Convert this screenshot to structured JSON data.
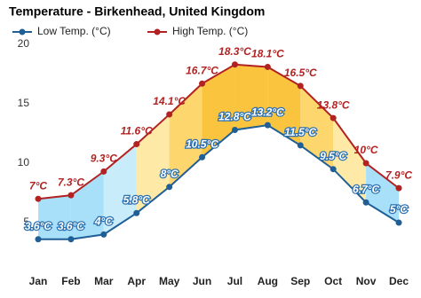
{
  "chart_data": {
    "type": "line",
    "title": "Temperature - Birkenhead, United Kingdom",
    "categories": [
      "Jan",
      "Feb",
      "Mar",
      "Apr",
      "May",
      "Jun",
      "Jul",
      "Aug",
      "Sep",
      "Oct",
      "Nov",
      "Dec"
    ],
    "series": [
      {
        "name": "Low Temp. (°C)",
        "color": "#1f5f96",
        "values": [
          3.6,
          3.6,
          4,
          5.8,
          8,
          10.5,
          12.8,
          13.2,
          11.5,
          9.5,
          6.7,
          5
        ],
        "value_labels": [
          "3.6°C",
          "3.6°C",
          "4°C",
          "5.8°C",
          "8°C",
          "10.5°C",
          "12.8°C",
          "13.2°C",
          "11.5°C",
          "9.5°C",
          "6.7°C",
          "5°C"
        ]
      },
      {
        "name": "High Temp. (°C)",
        "color": "#b22222",
        "values": [
          7,
          7.3,
          9.3,
          11.6,
          14.1,
          16.7,
          18.3,
          18.1,
          16.5,
          13.8,
          10,
          7.9
        ],
        "value_labels": [
          "7°C",
          "7.3°C",
          "9.3°C",
          "11.6°C",
          "14.1°C",
          "16.7°C",
          "18.3°C",
          "18.1°C",
          "16.5°C",
          "13.8°C",
          "10°C",
          "7.9°C"
        ]
      }
    ],
    "ylim": [
      1,
      21
    ],
    "yticks": [
      5,
      10,
      15,
      20
    ],
    "grid": false
  }
}
